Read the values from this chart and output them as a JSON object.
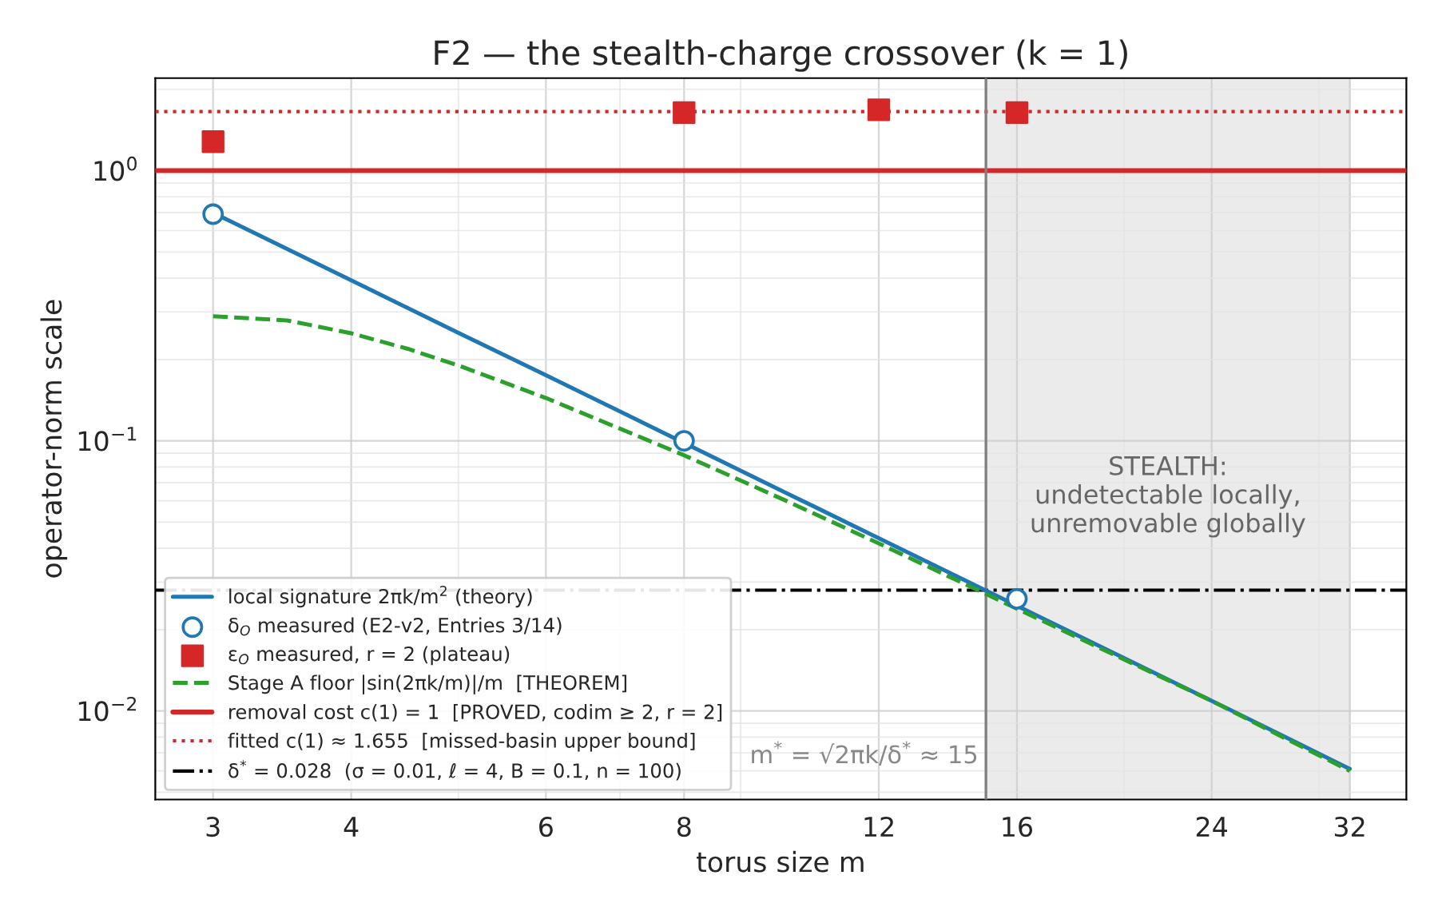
{
  "chart_data": {
    "type": "line",
    "title": "F2 — the stealth-charge crossover (k = 1)",
    "xlabel": "torus size m",
    "ylabel": "operator-norm scale",
    "log": "xy",
    "grid": true,
    "legend": "bottom left",
    "xlim": [
      2.66,
      36
    ],
    "xticks": [
      3,
      4,
      6,
      8,
      12,
      16,
      24,
      32
    ],
    "ylim": [
      0.0047,
      2.2
    ],
    "yticks": [
      {
        "value": 1,
        "label": "10$^{0}$"
      },
      {
        "value": 0.1,
        "label": "10$^{−1}$"
      },
      {
        "value": 0.01,
        "label": "10$^{−2}$"
      }
    ],
    "series": [
      {
        "name": "local signature 2πk/m$^{2}$ (theory)",
        "color": "#1f77b4",
        "line_style": "solid",
        "marker": "none",
        "x": [
          3,
          4,
          5,
          6,
          8,
          10,
          12,
          15,
          16,
          20,
          24,
          28,
          32
        ],
        "values": [
          0.698,
          0.393,
          0.251,
          0.175,
          0.0982,
          0.0628,
          0.0436,
          0.0279,
          0.0245,
          0.0157,
          0.0109,
          0.008,
          0.0061
        ]
      },
      {
        "name": "δ$_{O}$ measured (E2-v2, Entries 3/14)",
        "type": "scatter",
        "color": "#1f77b4",
        "marker": "circle",
        "x": [
          3,
          8,
          16
        ],
        "values": [
          0.69,
          0.1,
          0.026
        ]
      },
      {
        "name": "ε$_{O}$ measured, r = 2 (plateau)",
        "type": "scatter",
        "color": "#d62728",
        "marker": "square",
        "x": [
          3,
          8,
          12,
          16
        ],
        "values": [
          1.28,
          1.64,
          1.68,
          1.64
        ]
      },
      {
        "name": "Stage A floor |sin(2πk/m)|/m  [THEOREM]",
        "color": "#2ca02c",
        "line_style": "dashed",
        "marker": "none",
        "x": [
          3,
          3.5,
          4,
          4.5,
          5,
          6,
          8,
          10,
          12,
          15,
          16,
          20,
          24,
          28,
          32
        ],
        "values": [
          0.289,
          0.279,
          0.25,
          0.219,
          0.19,
          0.144,
          0.0884,
          0.0588,
          0.0417,
          0.0271,
          0.0239,
          0.0155,
          0.0109,
          0.0079,
          0.006
        ]
      }
    ],
    "ref_lines": [
      {
        "axis": "y",
        "value": 1,
        "label": "removal cost c(1) = 1  [PROVED, codim ≥ 2, r = 2]",
        "color": "#d62728",
        "line_style": "solid"
      },
      {
        "axis": "y",
        "value": 1.655,
        "label": "fitted c(1) ≈ 1.655  [missed-basin upper bound]",
        "color": "#d62728",
        "line_style": "dotted"
      },
      {
        "axis": "y",
        "value": 0.028,
        "label": "δ$^{*}$ = 0.028  (σ = 0.01, ℓ = 4, B = 0.1, n = 100)",
        "color": "#000000",
        "line_style": "dashdot"
      },
      {
        "axis": "x",
        "value": 15,
        "color": "#808080",
        "line_style": "solid"
      }
    ],
    "bands": [
      {
        "axis": "x",
        "from": 15,
        "to": 32,
        "label": "STEALTH:\nundetectable locally,\nunremovable globally",
        "color": "#ebebeb"
      }
    ],
    "annotations": [
      {
        "text": "m$^{*}$ = √2πk/δ$^{*}$ ≈ 15",
        "x": 15,
        "y": 0.0068
      }
    ]
  }
}
